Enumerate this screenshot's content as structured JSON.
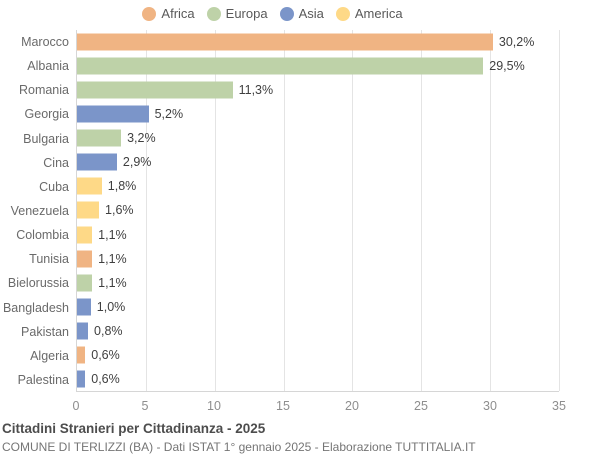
{
  "chart_data": {
    "type": "bar",
    "orientation": "horizontal",
    "title": "Cittadini Stranieri per Cittadinanza - 2025",
    "subtitle": "COMUNE DI TERLIZZI (BA) - Dati ISTAT 1° gennaio 2025 - Elaborazione TUTTITALIA.IT",
    "categories": [
      "Marocco",
      "Albania",
      "Romania",
      "Georgia",
      "Bulgaria",
      "Cina",
      "Cuba",
      "Venezuela",
      "Colombia",
      "Tunisia",
      "Bielorussia",
      "Bangladesh",
      "Pakistan",
      "Algeria",
      "Palestina"
    ],
    "values": [
      30.2,
      29.5,
      11.3,
      5.2,
      3.2,
      2.9,
      1.8,
      1.6,
      1.1,
      1.1,
      1.1,
      1.0,
      0.8,
      0.6,
      0.6
    ],
    "value_labels": [
      "30,2%",
      "29,5%",
      "11,3%",
      "5,2%",
      "3,2%",
      "2,9%",
      "1,8%",
      "1,6%",
      "1,1%",
      "1,1%",
      "1,1%",
      "1,0%",
      "0,8%",
      "0,6%",
      "0,6%"
    ],
    "continents": [
      "Africa",
      "Europa",
      "Europa",
      "Asia",
      "Europa",
      "Asia",
      "America",
      "America",
      "America",
      "Africa",
      "Europa",
      "Asia",
      "Asia",
      "Africa",
      "Asia"
    ],
    "legend": [
      {
        "name": "Africa",
        "color": "#f0b483"
      },
      {
        "name": "Europa",
        "color": "#bed2a8"
      },
      {
        "name": "Asia",
        "color": "#7b95c9"
      },
      {
        "name": "America",
        "color": "#fed987"
      }
    ],
    "legend_position": "top",
    "xlim": [
      0,
      35
    ],
    "ticks": [
      0,
      5,
      10,
      15,
      20,
      25,
      30,
      35
    ],
    "grid": true
  }
}
